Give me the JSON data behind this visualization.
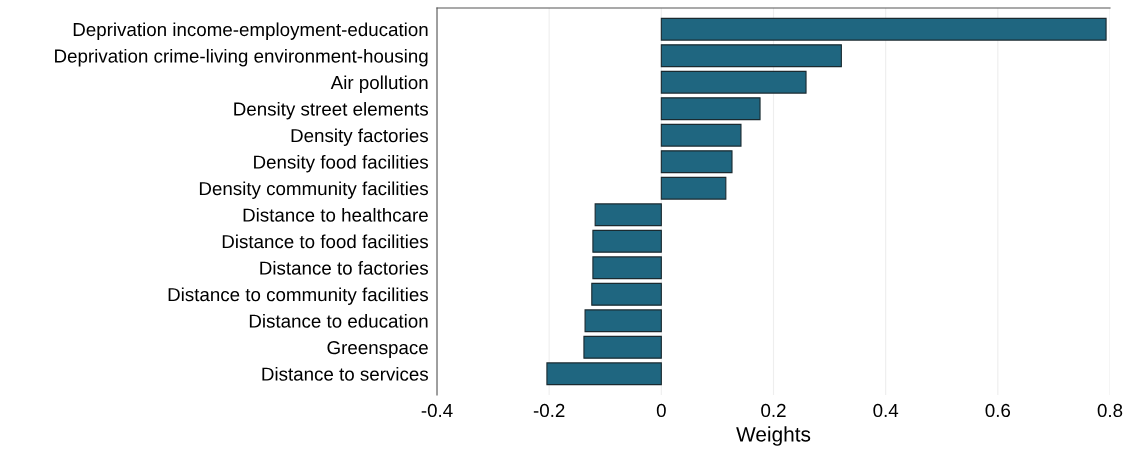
{
  "chart_data": {
    "type": "bar",
    "orientation": "horizontal",
    "xlabel": "Weights",
    "categories": [
      "Deprivation income-employment-education",
      "Deprivation crime-living environment-housing",
      "Air pollution",
      "Density street elements",
      "Density factories",
      "Density food facilities",
      "Density community facilities",
      "Distance to healthcare",
      "Distance to food facilities",
      "Distance to factories",
      "Distance to community facilities",
      "Distance to education",
      "Greenspace",
      "Distance to services"
    ],
    "values": [
      0.793,
      0.321,
      0.258,
      0.176,
      0.142,
      0.126,
      0.115,
      -0.118,
      -0.122,
      -0.122,
      -0.124,
      -0.136,
      -0.138,
      -0.204
    ],
    "color": "#1f6680",
    "xlim": [
      -0.4,
      0.8
    ],
    "xticks": [
      -0.4,
      -0.2,
      0,
      0.2,
      0.4,
      0.6,
      0.8
    ],
    "grid": "x"
  }
}
